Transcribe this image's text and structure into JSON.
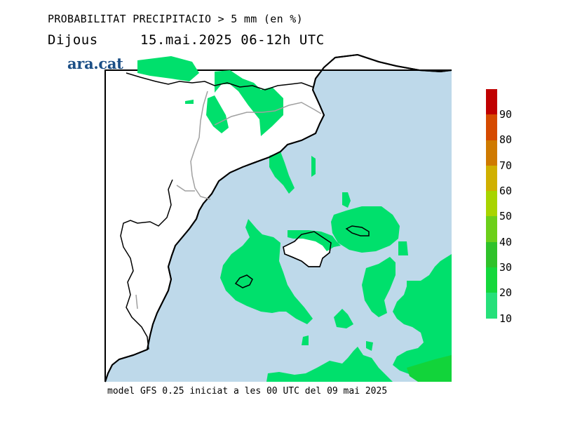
{
  "header": {
    "title": "PROBABILITAT PRECIPITACIO > 5 mm (en %)",
    "day": "Dijous",
    "valid": "15.mai.2025 06-12h UTC"
  },
  "logo": {
    "text": "ara.cat",
    "color": "#1c4f86"
  },
  "footer": {
    "text": "model GFS 0.25 iniciat a les 00 UTC del 09 mai 2025"
  },
  "colors": {
    "sea": "#bed9ea",
    "land": "#ffffff",
    "coast": "#000000",
    "borders": "#a0a0a0"
  },
  "colorbar": {
    "labels": [
      "90",
      "80",
      "70",
      "60",
      "50",
      "40",
      "30",
      "20",
      "10"
    ],
    "colors": [
      "#c00000",
      "#d54a00",
      "#cf7a00",
      "#d0b000",
      "#a8d400",
      "#6ccf1a",
      "#2fc22a",
      "#14d83c",
      "#26e07a",
      "#00e07a"
    ]
  },
  "precip_areas": {
    "pct_10_20_color": "#00e06c",
    "pct_20_30_color": "#12d43a"
  }
}
